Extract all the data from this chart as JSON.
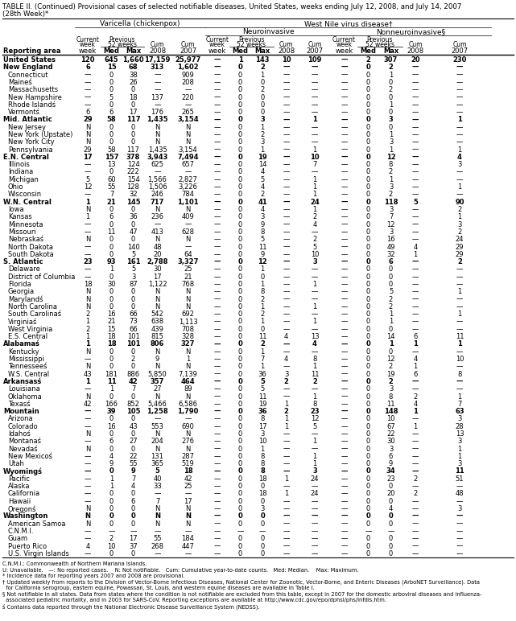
{
  "title_line1": "TABLE II. (Continued) Provisional cases of selected notifiable diseases, United States, weeks ending July 12, 2008, and July 14, 2007",
  "title_line2": "(28th Week)*",
  "rows": [
    [
      "United States",
      "120",
      "645",
      "1,660",
      "17,159",
      "25,977",
      "—",
      "1",
      "143",
      "10",
      "109",
      "—",
      "2",
      "307",
      "20",
      "230"
    ],
    [
      "New England",
      "6",
      "15",
      "68",
      "313",
      "1,602",
      "—",
      "0",
      "2",
      "—",
      "—",
      "—",
      "0",
      "2",
      "—",
      "—"
    ],
    [
      "Connecticut",
      "—",
      "0",
      "38",
      "—",
      "909",
      "—",
      "0",
      "1",
      "—",
      "—",
      "—",
      "0",
      "1",
      "—",
      "—"
    ],
    [
      "Maineś",
      "—",
      "0",
      "26",
      "—",
      "208",
      "—",
      "0",
      "0",
      "—",
      "—",
      "—",
      "0",
      "0",
      "—",
      "—"
    ],
    [
      "Massachusetts",
      "—",
      "0",
      "0",
      "—",
      "—",
      "—",
      "0",
      "2",
      "—",
      "—",
      "—",
      "0",
      "2",
      "—",
      "—"
    ],
    [
      "New Hampshire",
      "—",
      "5",
      "18",
      "137",
      "220",
      "—",
      "0",
      "0",
      "—",
      "—",
      "—",
      "0",
      "0",
      "—",
      "—"
    ],
    [
      "Rhode Islandś",
      "—",
      "0",
      "0",
      "—",
      "—",
      "—",
      "0",
      "0",
      "—",
      "—",
      "—",
      "0",
      "1",
      "—",
      "—"
    ],
    [
      "Vermontś",
      "6",
      "6",
      "17",
      "176",
      "265",
      "—",
      "0",
      "0",
      "—",
      "—",
      "—",
      "0",
      "0",
      "—",
      "—"
    ],
    [
      "Mid. Atlantic",
      "29",
      "58",
      "117",
      "1,435",
      "3,154",
      "—",
      "0",
      "3",
      "—",
      "1",
      "—",
      "0",
      "3",
      "—",
      "1"
    ],
    [
      "New Jersey",
      "N",
      "0",
      "0",
      "N",
      "N",
      "—",
      "0",
      "1",
      "—",
      "—",
      "—",
      "0",
      "0",
      "—",
      "—"
    ],
    [
      "New York (Upstate)",
      "N",
      "0",
      "0",
      "N",
      "N",
      "—",
      "0",
      "2",
      "—",
      "—",
      "—",
      "0",
      "1",
      "—",
      "—"
    ],
    [
      "New York City",
      "N",
      "0",
      "0",
      "N",
      "N",
      "—",
      "0",
      "3",
      "—",
      "—",
      "—",
      "0",
      "3",
      "—",
      "—"
    ],
    [
      "Pennsylvania",
      "29",
      "58",
      "117",
      "1,435",
      "3,154",
      "—",
      "0",
      "1",
      "—",
      "1",
      "—",
      "0",
      "1",
      "—",
      "1"
    ],
    [
      "E.N. Central",
      "17",
      "157",
      "378",
      "3,943",
      "7,494",
      "—",
      "0",
      "19",
      "—",
      "10",
      "—",
      "0",
      "12",
      "—",
      "4"
    ],
    [
      "Illinois",
      "—",
      "13",
      "124",
      "625",
      "657",
      "—",
      "0",
      "14",
      "—",
      "7",
      "—",
      "0",
      "8",
      "—",
      "3"
    ],
    [
      "Indiana",
      "—",
      "0",
      "222",
      "—",
      "—",
      "—",
      "0",
      "4",
      "—",
      "—",
      "—",
      "0",
      "2",
      "—",
      "—"
    ],
    [
      "Michigan",
      "5",
      "60",
      "154",
      "1,566",
      "2,827",
      "—",
      "0",
      "5",
      "—",
      "1",
      "—",
      "0",
      "1",
      "—",
      "—"
    ],
    [
      "Ohio",
      "12",
      "55",
      "128",
      "1,506",
      "3,226",
      "—",
      "0",
      "4",
      "—",
      "1",
      "—",
      "0",
      "3",
      "—",
      "1"
    ],
    [
      "Wisconsin",
      "—",
      "7",
      "32",
      "246",
      "784",
      "—",
      "0",
      "2",
      "—",
      "1",
      "—",
      "0",
      "2",
      "—",
      "—"
    ],
    [
      "W.N. Central",
      "1",
      "21",
      "145",
      "717",
      "1,101",
      "—",
      "0",
      "41",
      "—",
      "24",
      "—",
      "0",
      "118",
      "5",
      "90"
    ],
    [
      "Iowa",
      "N",
      "0",
      "0",
      "N",
      "N",
      "—",
      "0",
      "4",
      "—",
      "1",
      "—",
      "0",
      "3",
      "—",
      "2"
    ],
    [
      "Kansas",
      "1",
      "6",
      "36",
      "236",
      "409",
      "—",
      "0",
      "3",
      "—",
      "2",
      "—",
      "0",
      "7",
      "—",
      "1"
    ],
    [
      "Minnesota",
      "—",
      "0",
      "0",
      "—",
      "—",
      "—",
      "0",
      "9",
      "—",
      "4",
      "—",
      "0",
      "12",
      "—",
      "3"
    ],
    [
      "Missouri",
      "—",
      "11",
      "47",
      "413",
      "628",
      "—",
      "0",
      "8",
      "—",
      "—",
      "—",
      "0",
      "3",
      "—",
      "2"
    ],
    [
      "Nebraskaś",
      "N",
      "0",
      "0",
      "N",
      "N",
      "—",
      "0",
      "5",
      "—",
      "2",
      "—",
      "0",
      "16",
      "—",
      "24"
    ],
    [
      "North Dakota",
      "—",
      "0",
      "140",
      "48",
      "—",
      "—",
      "0",
      "11",
      "—",
      "5",
      "—",
      "0",
      "49",
      "4",
      "29"
    ],
    [
      "South Dakota",
      "—",
      "0",
      "5",
      "20",
      "64",
      "—",
      "0",
      "9",
      "—",
      "10",
      "—",
      "0",
      "32",
      "1",
      "29"
    ],
    [
      "S. Atlantic",
      "23",
      "93",
      "161",
      "2,788",
      "3,327",
      "—",
      "0",
      "12",
      "—",
      "3",
      "—",
      "0",
      "6",
      "—",
      "2"
    ],
    [
      "Delaware",
      "—",
      "1",
      "5",
      "30",
      "25",
      "—",
      "0",
      "1",
      "—",
      "—",
      "—",
      "0",
      "0",
      "—",
      "—"
    ],
    [
      "District of Columbia",
      "—",
      "0",
      "3",
      "17",
      "21",
      "—",
      "0",
      "0",
      "—",
      "—",
      "—",
      "0",
      "0",
      "—",
      "—"
    ],
    [
      "Florida",
      "18",
      "30",
      "87",
      "1,122",
      "768",
      "—",
      "0",
      "1",
      "—",
      "1",
      "—",
      "0",
      "0",
      "—",
      "—"
    ],
    [
      "Georgia",
      "N",
      "0",
      "0",
      "N",
      "N",
      "—",
      "0",
      "8",
      "—",
      "—",
      "—",
      "0",
      "5",
      "—",
      "1"
    ],
    [
      "Marylandś",
      "N",
      "0",
      "0",
      "N",
      "N",
      "—",
      "0",
      "2",
      "—",
      "—",
      "—",
      "0",
      "2",
      "—",
      "—"
    ],
    [
      "North Carolina",
      "N",
      "0",
      "0",
      "N",
      "N",
      "—",
      "0",
      "1",
      "—",
      "1",
      "—",
      "0",
      "2",
      "—",
      "—"
    ],
    [
      "South Carolinaś",
      "2",
      "16",
      "66",
      "542",
      "692",
      "—",
      "0",
      "2",
      "—",
      "—",
      "—",
      "0",
      "1",
      "—",
      "1"
    ],
    [
      "Virginiaś",
      "1",
      "21",
      "73",
      "638",
      "1,113",
      "—",
      "0",
      "1",
      "—",
      "1",
      "—",
      "0",
      "1",
      "—",
      "—"
    ],
    [
      "West Virginia",
      "2",
      "15",
      "66",
      "439",
      "708",
      "—",
      "0",
      "0",
      "—",
      "—",
      "—",
      "0",
      "0",
      "—",
      "—"
    ],
    [
      "E.S. Central",
      "1",
      "18",
      "101",
      "815",
      "328",
      "—",
      "0",
      "11",
      "4",
      "13",
      "—",
      "0",
      "14",
      "6",
      "11"
    ],
    [
      "Alabamaś",
      "1",
      "18",
      "101",
      "806",
      "327",
      "—",
      "0",
      "2",
      "—",
      "4",
      "—",
      "0",
      "1",
      "1",
      "1"
    ],
    [
      "Kentucky",
      "N",
      "0",
      "0",
      "N",
      "N",
      "—",
      "0",
      "1",
      "—",
      "—",
      "—",
      "0",
      "0",
      "—",
      "—"
    ],
    [
      "Mississippi",
      "—",
      "0",
      "2",
      "9",
      "1",
      "—",
      "0",
      "7",
      "4",
      "8",
      "—",
      "0",
      "12",
      "4",
      "10"
    ],
    [
      "Tennesseeś",
      "N",
      "0",
      "0",
      "N",
      "N",
      "—",
      "0",
      "1",
      "—",
      "1",
      "—",
      "0",
      "2",
      "1",
      "—"
    ],
    [
      "W.S. Central",
      "43",
      "181",
      "886",
      "5,850",
      "7,139",
      "—",
      "0",
      "36",
      "3",
      "11",
      "—",
      "0",
      "19",
      "6",
      "8"
    ],
    [
      "Arkansasś",
      "1",
      "11",
      "42",
      "357",
      "464",
      "—",
      "0",
      "5",
      "2",
      "2",
      "—",
      "0",
      "2",
      "—",
      "—"
    ],
    [
      "Louisiana",
      "—",
      "1",
      "7",
      "27",
      "89",
      "—",
      "0",
      "5",
      "—",
      "—",
      "—",
      "0",
      "3",
      "—",
      "—"
    ],
    [
      "Oklahoma",
      "N",
      "0",
      "0",
      "N",
      "N",
      "—",
      "0",
      "11",
      "—",
      "1",
      "—",
      "0",
      "8",
      "2",
      "1"
    ],
    [
      "Texasś",
      "42",
      "166",
      "852",
      "5,466",
      "6,586",
      "—",
      "0",
      "19",
      "1",
      "8",
      "—",
      "0",
      "11",
      "4",
      "7"
    ],
    [
      "Mountain",
      "—",
      "39",
      "105",
      "1,258",
      "1,790",
      "—",
      "0",
      "36",
      "2",
      "23",
      "—",
      "0",
      "148",
      "1",
      "63"
    ],
    [
      "Arizona",
      "—",
      "0",
      "0",
      "—",
      "—",
      "—",
      "0",
      "8",
      "1",
      "12",
      "—",
      "0",
      "10",
      "—",
      "3"
    ],
    [
      "Colorado",
      "—",
      "16",
      "43",
      "553",
      "690",
      "—",
      "0",
      "17",
      "1",
      "5",
      "—",
      "0",
      "67",
      "1",
      "28"
    ],
    [
      "Idahoś",
      "N",
      "0",
      "0",
      "N",
      "N",
      "—",
      "0",
      "3",
      "—",
      "—",
      "—",
      "0",
      "22",
      "—",
      "13"
    ],
    [
      "Montanaś",
      "—",
      "6",
      "27",
      "204",
      "276",
      "—",
      "0",
      "10",
      "—",
      "1",
      "—",
      "0",
      "30",
      "—",
      "3"
    ],
    [
      "Nevadaś",
      "N",
      "0",
      "0",
      "N",
      "N",
      "—",
      "0",
      "1",
      "—",
      "—",
      "—",
      "0",
      "3",
      "—",
      "1"
    ],
    [
      "New Mexicoś",
      "—",
      "4",
      "22",
      "131",
      "287",
      "—",
      "0",
      "8",
      "—",
      "1",
      "—",
      "0",
      "6",
      "—",
      "1"
    ],
    [
      "Utah",
      "—",
      "9",
      "55",
      "365",
      "519",
      "—",
      "0",
      "8",
      "—",
      "1",
      "—",
      "0",
      "9",
      "—",
      "3"
    ],
    [
      "Wyomingś",
      "—",
      "0",
      "9",
      "5",
      "18",
      "—",
      "0",
      "8",
      "—",
      "3",
      "—",
      "0",
      "34",
      "—",
      "11"
    ],
    [
      "Pacific",
      "—",
      "1",
      "7",
      "40",
      "42",
      "—",
      "0",
      "18",
      "1",
      "24",
      "—",
      "0",
      "23",
      "2",
      "51"
    ],
    [
      "Alaska",
      "—",
      "1",
      "4",
      "33",
      "25",
      "—",
      "0",
      "0",
      "—",
      "—",
      "—",
      "0",
      "0",
      "—",
      "—"
    ],
    [
      "California",
      "—",
      "0",
      "0",
      "—",
      "—",
      "—",
      "0",
      "18",
      "1",
      "24",
      "—",
      "0",
      "20",
      "2",
      "48"
    ],
    [
      "Hawaii",
      "—",
      "0",
      "6",
      "7",
      "17",
      "—",
      "0",
      "0",
      "—",
      "—",
      "—",
      "0",
      "0",
      "—",
      "—"
    ],
    [
      "Oregonś",
      "N",
      "0",
      "0",
      "N",
      "N",
      "—",
      "0",
      "3",
      "—",
      "—",
      "—",
      "0",
      "4",
      "—",
      "3"
    ],
    [
      "Washington",
      "N",
      "0",
      "0",
      "N",
      "N",
      "—",
      "0",
      "0",
      "—",
      "—",
      "—",
      "0",
      "0",
      "—",
      "—"
    ],
    [
      "American Samoa",
      "N",
      "0",
      "0",
      "N",
      "N",
      "—",
      "0",
      "0",
      "—",
      "—",
      "—",
      "0",
      "0",
      "—",
      "—"
    ],
    [
      "C.N.M.I.",
      "—",
      "—",
      "—",
      "—",
      "—",
      "—",
      "—",
      "—",
      "—",
      "—",
      "—",
      "—",
      "—",
      "—",
      "—"
    ],
    [
      "Guam",
      "—",
      "2",
      "17",
      "55",
      "184",
      "—",
      "0",
      "0",
      "—",
      "—",
      "—",
      "0",
      "0",
      "—",
      "—"
    ],
    [
      "Puerto Rico",
      "4",
      "10",
      "37",
      "268",
      "447",
      "—",
      "0",
      "0",
      "—",
      "—",
      "—",
      "0",
      "0",
      "—",
      "—"
    ],
    [
      "U.S. Virgin Islands",
      "—",
      "0",
      "0",
      "—",
      "—",
      "—",
      "0",
      "0",
      "—",
      "—",
      "—",
      "0",
      "0",
      "—",
      "—"
    ]
  ],
  "bold_rows": [
    0,
    1,
    8,
    13,
    19,
    27,
    38,
    43,
    47,
    55,
    61
  ],
  "footnotes": [
    "C.N.M.I.: Commonwealth of Northern Mariana Islands.",
    "U: Unavailable.   —: No reported cases.    N: Not notifiable.   Cum: Cumulative year-to-date counts.   Med: Median.    Max: Maximum.",
    "* Incidence data for reporting years 2007 and 2008 are provisional.",
    "† Updated weekly from reports to the Division of Vector-Borne Infectious Diseases, National Center for Zoonotic, Vector-Borne, and Enteric Diseases (ArboNET Surveillance). Data",
    "  for California serogroup, eastern equine, Powassan, St. Louis, and western equine diseases are available in Table I.",
    "§ Not notifiable in all states. Data from states where the condition is not notifiable are excluded from this table, except in 2007 for the domestic arboviral diseases and influenza-",
    "  associated pediatric mortality, and in 2003 for SARS-CoV. Reporting exceptions are available at http://www.cdc.gov/epo/dphsi/phs/infdis.htm.",
    "ś Contains data reported through the National Electronic Disease Surveillance System (NEDSS)."
  ]
}
